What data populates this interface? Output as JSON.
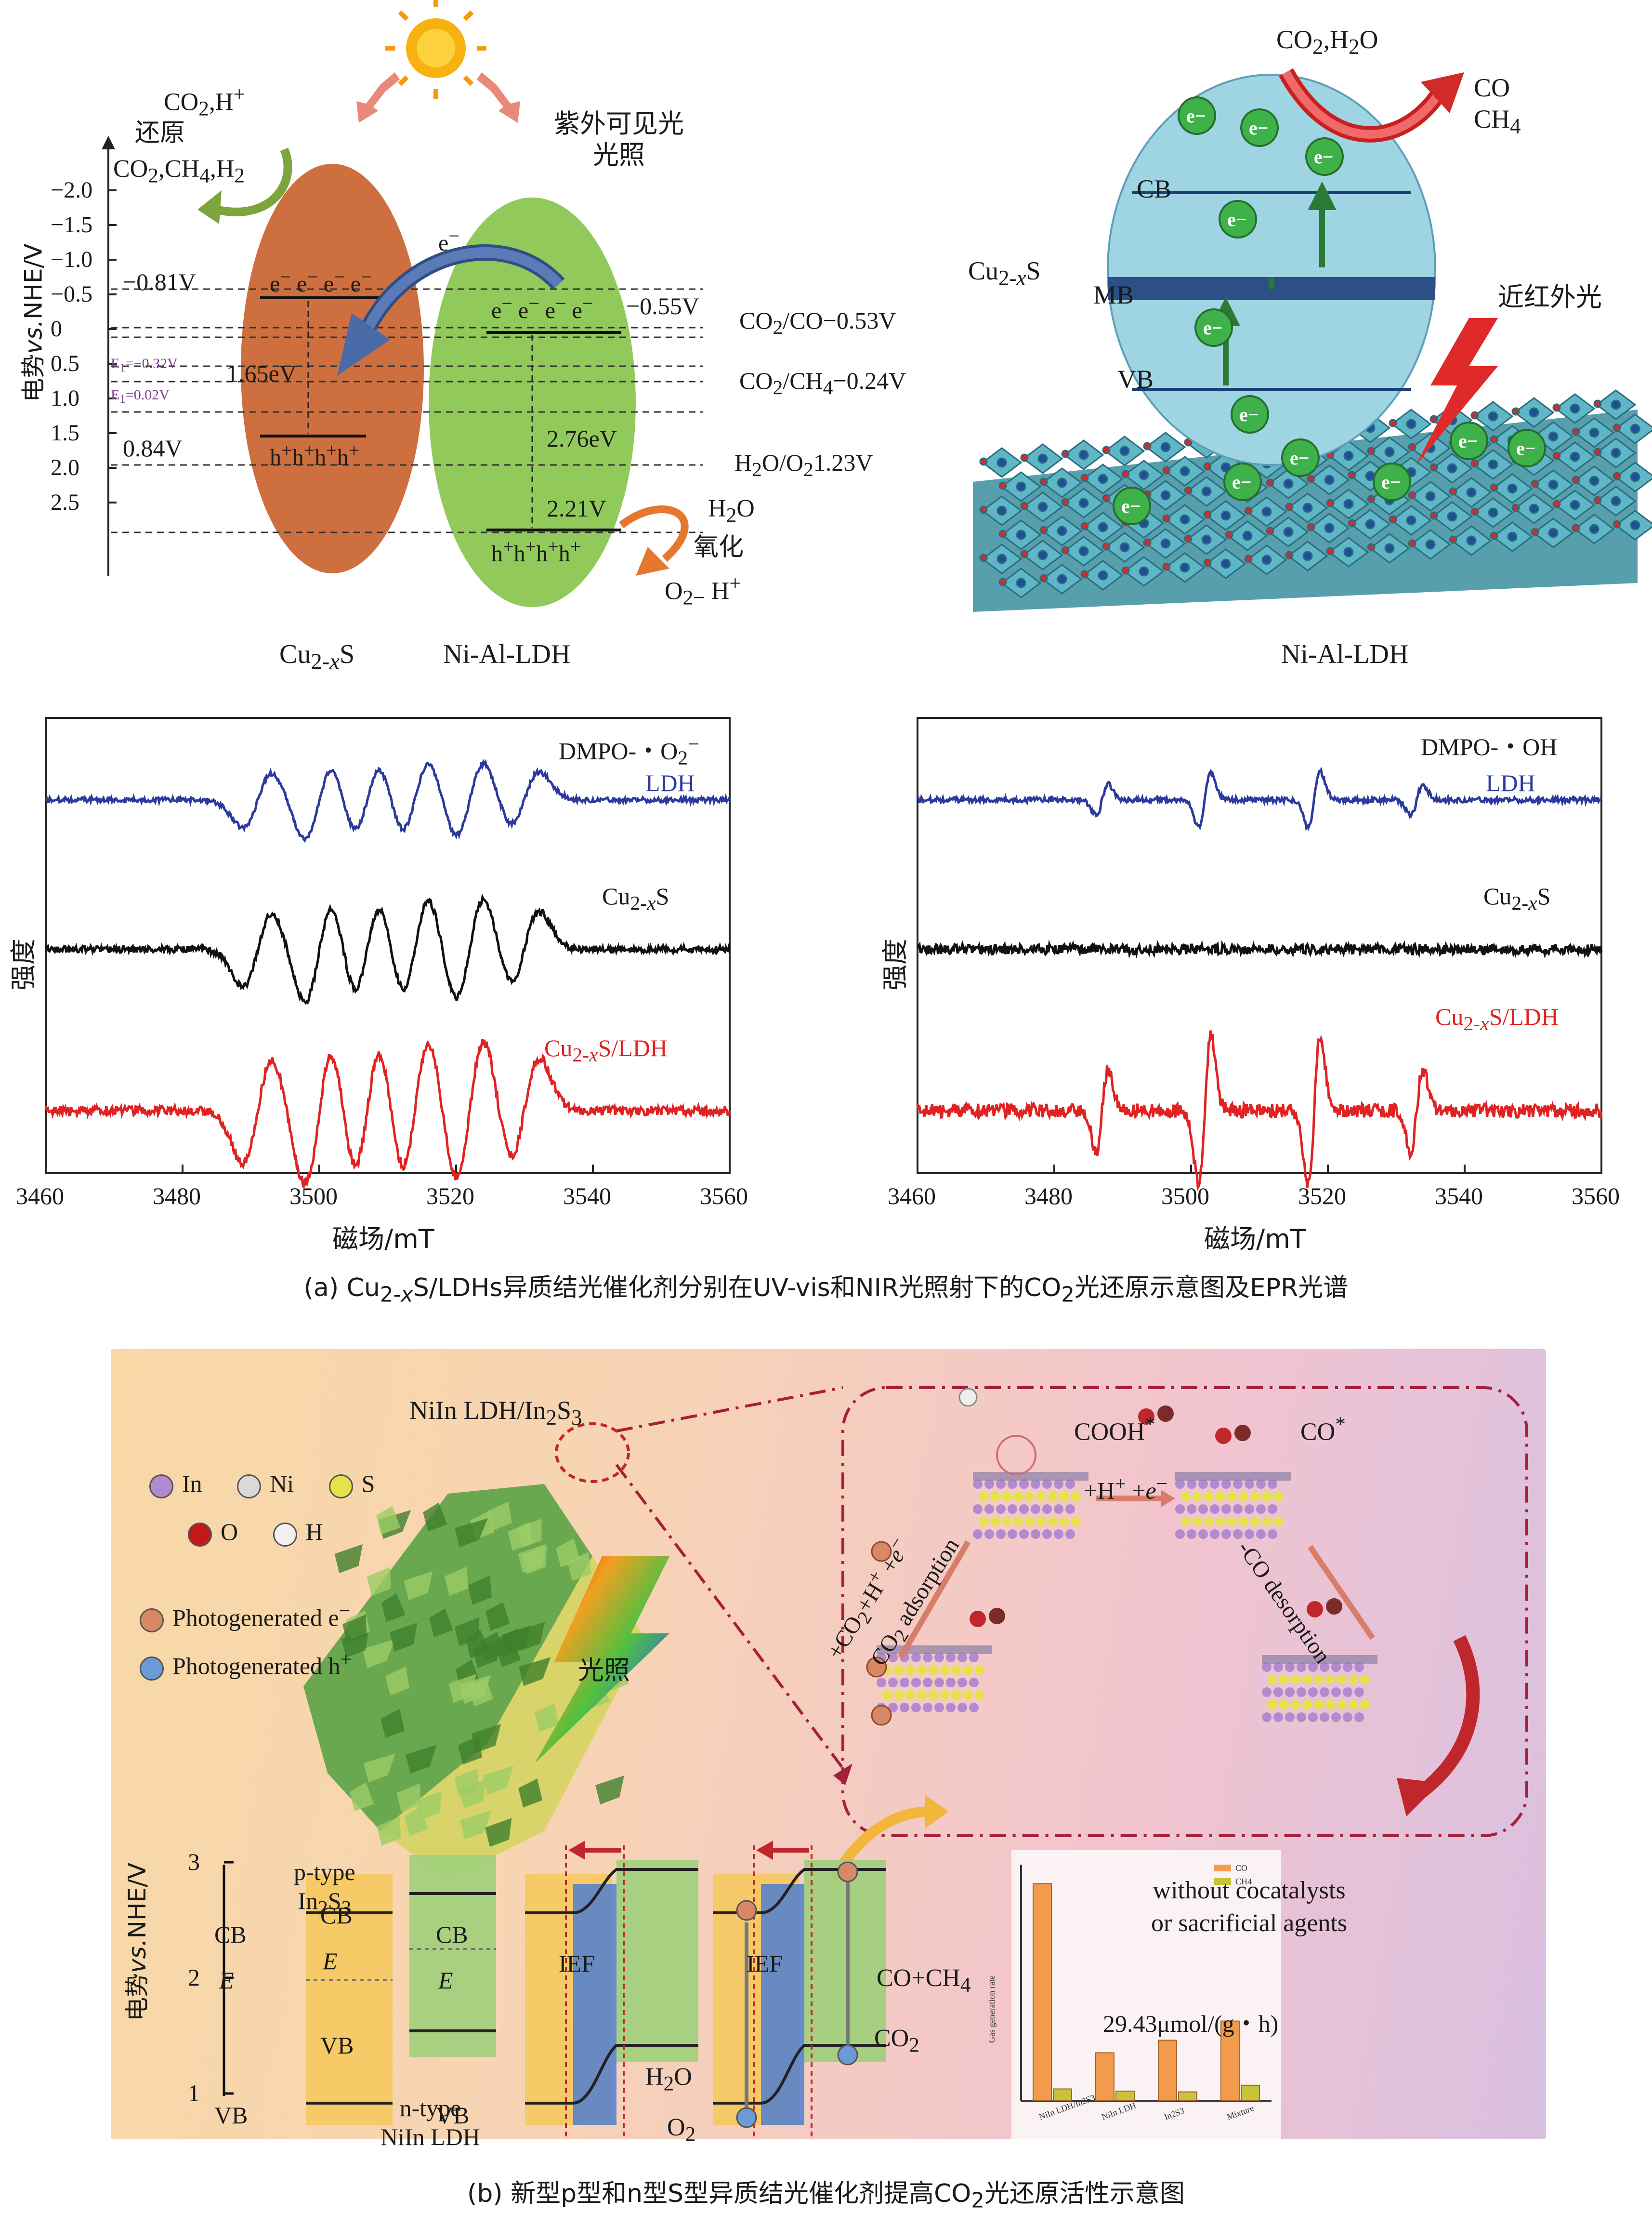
{
  "panel_a": {
    "top_left": {
      "y_axis_label": "电势vs.NHE/V",
      "y_ticks": [
        "−2.0",
        "−1.5",
        "−1.0",
        "−0.5",
        "0",
        "0.5",
        "1.0",
        "1.5",
        "2.0",
        "2.5"
      ],
      "light_label": "紫外可见光\n光照",
      "reduction_label_1": "CO2,H+",
      "reduction_label_2": "还原",
      "reduction_label_3": "CO2,CH4,H2",
      "cu2s_cb": "−0.81V",
      "cu2s_vb": "0.84V",
      "cu2s_gap": "1.65eV",
      "e1_label_a": "E1=−0.32V",
      "e1_label_b": "E1=0.02V",
      "ldh_cb": "−0.55V",
      "ldh_gap": "2.76eV",
      "ldh_vb": "2.21V",
      "electrons": "e− e− e− e−",
      "holes": "h+h+h+h+",
      "e_transfer": "e−",
      "co_level": "CO2/CO−0.53V",
      "ch4_level": "CO2/CH4−0.24V",
      "o2_level": "H2O/O21.23V",
      "h2o": "H2O",
      "oxidation": "氧化",
      "oxidation_products": "O2− H+",
      "material_1": "Cu2-xS",
      "material_2": "Ni-Al-LDH"
    },
    "top_right": {
      "reactants": "CO2,H2O",
      "products": "CO\nCH4",
      "cb": "CB",
      "mb": "MB",
      "vb": "VB",
      "material": "Cu2-xS",
      "nir_light": "近红外光",
      "substrate": "Ni-Al-LDH",
      "electron": "e−"
    },
    "epr_left": {
      "title": "DMPO-・O2−",
      "ylabel": "强度",
      "xlabel": "磁场/mT",
      "x_ticks": [
        "3460",
        "3480",
        "3500",
        "3520",
        "3540",
        "3560"
      ],
      "series": [
        {
          "name": "LDH",
          "color": "#2b3a9c"
        },
        {
          "name": "Cu2-xS",
          "color": "#111111"
        },
        {
          "name": "Cu2-xS/LDH",
          "color": "#e02222"
        }
      ]
    },
    "epr_right": {
      "title": "DMPO-・OH",
      "ylabel": "强度",
      "xlabel": "磁场/mT",
      "x_ticks": [
        "3460",
        "3480",
        "3500",
        "3520",
        "3540",
        "3560"
      ],
      "series": [
        {
          "name": "LDH",
          "color": "#2b3a9c"
        },
        {
          "name": "Cu2-xS",
          "color": "#111111"
        },
        {
          "name": "Cu2-xS/LDH",
          "color": "#e02222"
        }
      ]
    },
    "caption": "(a) Cu2-xS/LDHs异质结光催化剂分别在UV-vis和NIR光照射下的CO2光还原示意图及EPR光谱"
  },
  "panel_b": {
    "title": "NiIn LDH/In2S3",
    "legend": [
      {
        "label": "In",
        "color": "#b28ad0"
      },
      {
        "label": "Ni",
        "color": "#d9d9d9"
      },
      {
        "label": "S",
        "color": "#e6e24a"
      },
      {
        "label": "O",
        "color": "#c41818"
      },
      {
        "label": "H",
        "color": "#f4f0f0"
      }
    ],
    "photo_e": "Photogenerated e−",
    "photo_h": "Photogenerated h+",
    "light": "光照",
    "cooh": "COOH*",
    "co_star": "CO*",
    "step_1": "+H+ +e−",
    "adsorption_1": "+CO2+H+ +e−",
    "adsorption_2": "CO2 adsorption",
    "desorption": "CO desorption",
    "no_cocatalyst": "without cocatalysts\nor sacrificial agents",
    "ptype": "p-type\nIn2S3",
    "ntype": "n-type\nNiIn LDH",
    "cb": "CB",
    "vb": "VB",
    "e_label": "E",
    "ief": "IEF",
    "y_label": "电势vs.NHE/V",
    "y_ticks": [
      "3",
      "2",
      "1"
    ],
    "h2o": "H2O",
    "o2": "O2",
    "co2": "CO2",
    "co_ch4": "CO+CH4",
    "rate": "29.43μmol/(g・h)",
    "chart_legend": [
      "CO",
      "CH4"
    ],
    "caption": "(b) 新型p型和n型S型异质结光催化剂提高CO2光还原活性示意图"
  },
  "chart_data": [
    {
      "type": "line",
      "title": "DMPO-・O2−",
      "xlabel": "磁场/mT",
      "ylabel": "强度",
      "xlim": [
        3460,
        3560
      ],
      "x_ticks": [
        3460,
        3480,
        3500,
        3520,
        3540,
        3560
      ],
      "series": [
        {
          "name": "LDH",
          "peaks": [
            3491,
            3500,
            3507,
            3514,
            3522,
            3530
          ]
        },
        {
          "name": "Cu2-xS",
          "peaks": [
            3491,
            3500,
            3507,
            3514,
            3522,
            3530
          ]
        },
        {
          "name": "Cu2-xS/LDH",
          "peaks": [
            3491,
            3500,
            3507,
            3514,
            3522,
            3530
          ]
        }
      ]
    },
    {
      "type": "line",
      "title": "DMPO-・OH",
      "xlabel": "磁场/mT",
      "ylabel": "强度",
      "xlim": [
        3460,
        3560
      ],
      "x_ticks": [
        3460,
        3480,
        3500,
        3520,
        3540,
        3560
      ],
      "series": [
        {
          "name": "LDH",
          "peaks": [
            3487,
            3502,
            3518,
            3533
          ]
        },
        {
          "name": "Cu2-xS",
          "peaks": []
        },
        {
          "name": "Cu2-xS/LDH",
          "peaks": [
            3487,
            3502,
            3518,
            3533
          ]
        }
      ]
    },
    {
      "type": "bar",
      "title": "",
      "ylabel": "Gas generation rate",
      "categories": [
        "NiIn LDH/In2S3",
        "NiIn LDH",
        "In2S3",
        "Mixture"
      ],
      "series": [
        {
          "name": "CO",
          "values": [
            29.43,
            6.5,
            8.2,
            10.8
          ]
        },
        {
          "name": "CH4",
          "values": [
            1.6,
            1.3,
            1.2,
            2.1
          ]
        }
      ]
    }
  ]
}
